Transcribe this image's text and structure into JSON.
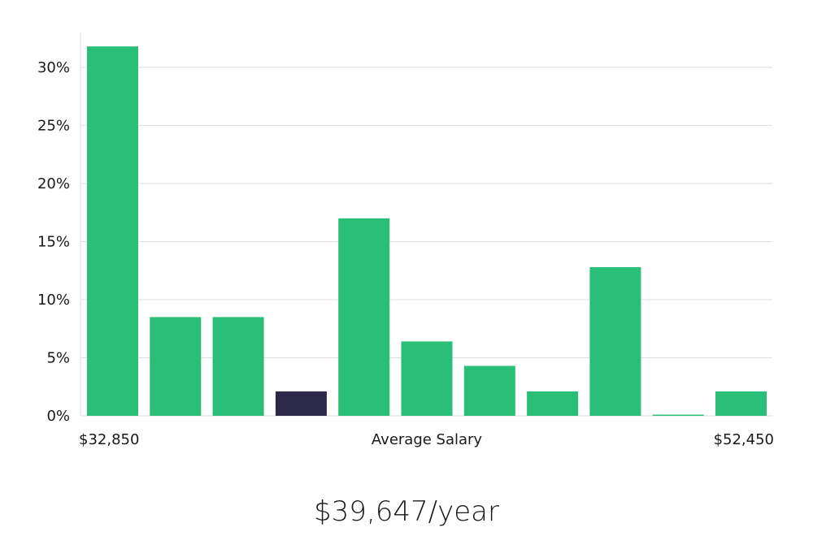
{
  "chart_data": {
    "type": "bar",
    "categories": [
      "1",
      "2",
      "3",
      "4",
      "5",
      "6",
      "7",
      "8",
      "9",
      "10",
      "11"
    ],
    "values": [
      31.8,
      8.5,
      8.5,
      2.1,
      17.0,
      6.4,
      4.3,
      2.1,
      12.8,
      0.1,
      2.1
    ],
    "highlight_index": 3,
    "ylim": [
      0,
      33
    ],
    "yticks": [
      0,
      5,
      10,
      15,
      20,
      25,
      30
    ],
    "ytick_labels": [
      "0%",
      "5%",
      "10%",
      "15%",
      "20%",
      "25%",
      "30%"
    ],
    "x_min_label": "$32,850",
    "xlabel": "Average Salary",
    "x_max_label": "$52,450",
    "grid": true,
    "bar_color": "#2abf78",
    "highlight_color": "#2b2849",
    "grid_color": "#dedede"
  },
  "salary": {
    "display": "$39,647/year"
  }
}
